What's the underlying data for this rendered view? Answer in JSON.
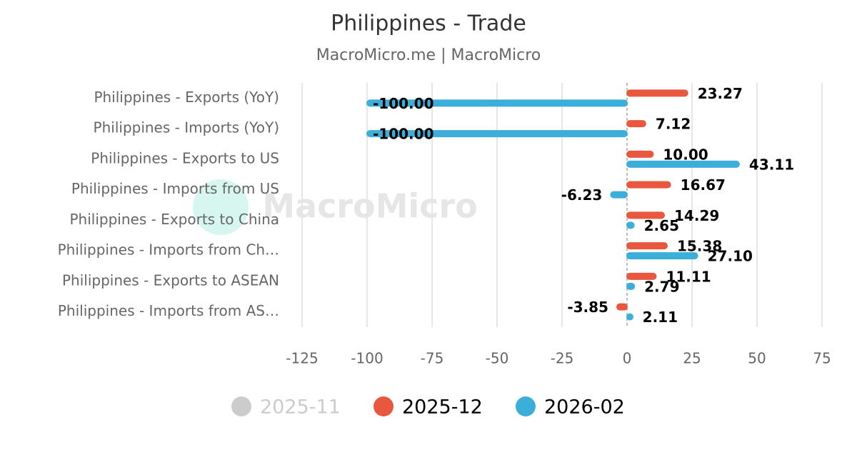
{
  "chart_data": {
    "type": "hbar",
    "title": "Philippines - Trade",
    "subtitle": "MacroMicro.me | MacroMicro",
    "watermark": "MacroMicro",
    "categories": [
      "Philippines - Exports (YoY)",
      "Philippines - Imports (YoY)",
      "Philippines - Exports to US",
      "Philippines - Imports from US",
      "Philippines - Exports to China",
      "Philippines - Imports from Ch…",
      "Philippines - Exports to ASEAN",
      "Philippines - Imports from AS…"
    ],
    "series": [
      {
        "name": "2025-11",
        "color": "#cccccc",
        "visible": false,
        "values": [
          null,
          null,
          null,
          null,
          null,
          null,
          null,
          null
        ]
      },
      {
        "name": "2025-12",
        "color": "#e9573f",
        "visible": true,
        "values": [
          23.27,
          7.12,
          10,
          16.67,
          14.29,
          15.38,
          11.11,
          -3.85
        ],
        "value_labels": [
          "23.27",
          "7.12",
          "10.00",
          "16.67",
          "14.29",
          "15.38",
          "11.11",
          "-3.85"
        ]
      },
      {
        "name": "2026-02",
        "color": "#3bafda",
        "visible": true,
        "values": [
          -100,
          -100,
          43.11,
          -6.23,
          2.65,
          27.1,
          2.79,
          2.11
        ],
        "value_labels": [
          "-100.00",
          "-100.00",
          "43.11",
          "-6.23",
          "2.65",
          "27.10",
          "2.79",
          "2.11"
        ]
      }
    ],
    "xlim": [
      -125,
      75
    ],
    "xticks": [
      -125,
      -100,
      -75,
      -50,
      -25,
      0,
      25,
      50,
      75
    ],
    "grid": true
  }
}
